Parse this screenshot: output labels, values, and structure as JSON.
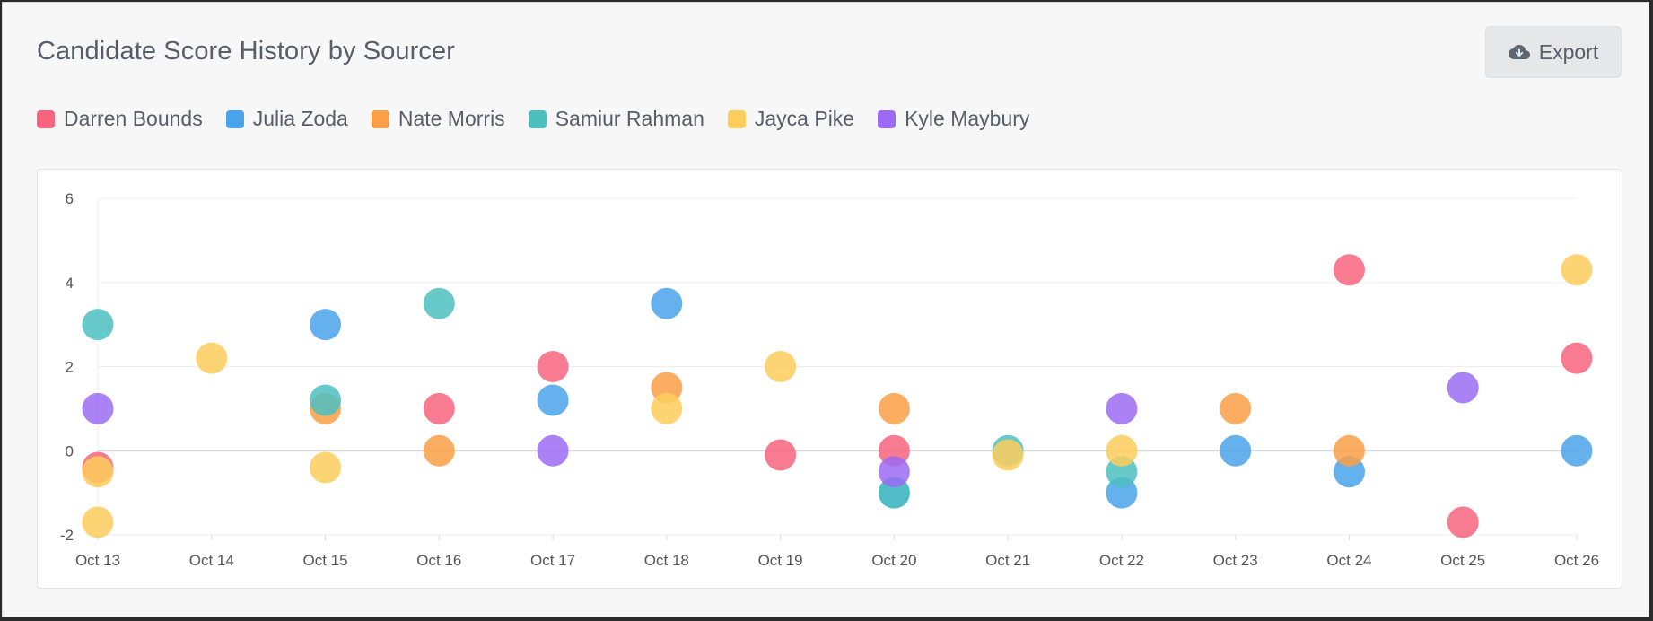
{
  "title": "Candidate Score History by Sourcer",
  "export_button": {
    "label": "Export",
    "icon": "cloud-download-icon"
  },
  "chart_data": {
    "type": "scatter",
    "title": "Candidate Score History by Sourcer",
    "xlabel": "",
    "ylabel": "",
    "categories": [
      "Oct 13",
      "Oct 14",
      "Oct 15",
      "Oct 16",
      "Oct 17",
      "Oct 18",
      "Oct 19",
      "Oct 20",
      "Oct 21",
      "Oct 22",
      "Oct 23",
      "Oct 24",
      "Oct 25",
      "Oct 26"
    ],
    "ylim": [
      -2,
      6
    ],
    "yticks": [
      -2,
      0,
      2,
      4,
      6
    ],
    "grid": true,
    "legend": "top-left",
    "series": [
      {
        "name": "Darren Bounds",
        "color": "#f7647f",
        "points": [
          [
            "Oct 13",
            -0.4
          ],
          [
            "Oct 16",
            1.0
          ],
          [
            "Oct 17",
            2.0
          ],
          [
            "Oct 19",
            -0.1
          ],
          [
            "Oct 20",
            0.0
          ],
          [
            "Oct 24",
            4.3
          ],
          [
            "Oct 25",
            -1.7
          ],
          [
            "Oct 26",
            2.2
          ]
        ]
      },
      {
        "name": "Julia Zoda",
        "color": "#49a3ea",
        "points": [
          [
            "Oct 15",
            3.0
          ],
          [
            "Oct 17",
            1.2
          ],
          [
            "Oct 18",
            3.5
          ],
          [
            "Oct 20",
            -1.0
          ],
          [
            "Oct 22",
            -1.0
          ],
          [
            "Oct 23",
            0.0
          ],
          [
            "Oct 24",
            -0.5
          ],
          [
            "Oct 26",
            0.0
          ]
        ]
      },
      {
        "name": "Nate Morris",
        "color": "#fa9f47",
        "points": [
          [
            "Oct 15",
            1.0
          ],
          [
            "Oct 16",
            0.0
          ],
          [
            "Oct 18",
            1.5
          ],
          [
            "Oct 20",
            1.0
          ],
          [
            "Oct 23",
            1.0
          ],
          [
            "Oct 24",
            0.0
          ]
        ]
      },
      {
        "name": "Samiur Rahman",
        "color": "#4cc0bf",
        "points": [
          [
            "Oct 13",
            3.0
          ],
          [
            "Oct 15",
            1.2
          ],
          [
            "Oct 16",
            3.5
          ],
          [
            "Oct 20",
            -1.0
          ],
          [
            "Oct 21",
            0.0
          ],
          [
            "Oct 22",
            -0.5
          ]
        ]
      },
      {
        "name": "Jayca Pike",
        "color": "#fdcd5c",
        "points": [
          [
            "Oct 13",
            -0.5
          ],
          [
            "Oct 13",
            -1.7
          ],
          [
            "Oct 14",
            2.2
          ],
          [
            "Oct 15",
            -0.4
          ],
          [
            "Oct 18",
            1.0
          ],
          [
            "Oct 19",
            2.0
          ],
          [
            "Oct 21",
            -0.1
          ],
          [
            "Oct 22",
            0.0
          ],
          [
            "Oct 26",
            4.3
          ]
        ]
      },
      {
        "name": "Kyle Maybury",
        "color": "#9c6bf5",
        "points": [
          [
            "Oct 13",
            1.0
          ],
          [
            "Oct 17",
            0.0
          ],
          [
            "Oct 20",
            -0.5
          ],
          [
            "Oct 22",
            1.0
          ],
          [
            "Oct 25",
            1.5
          ]
        ]
      }
    ]
  }
}
